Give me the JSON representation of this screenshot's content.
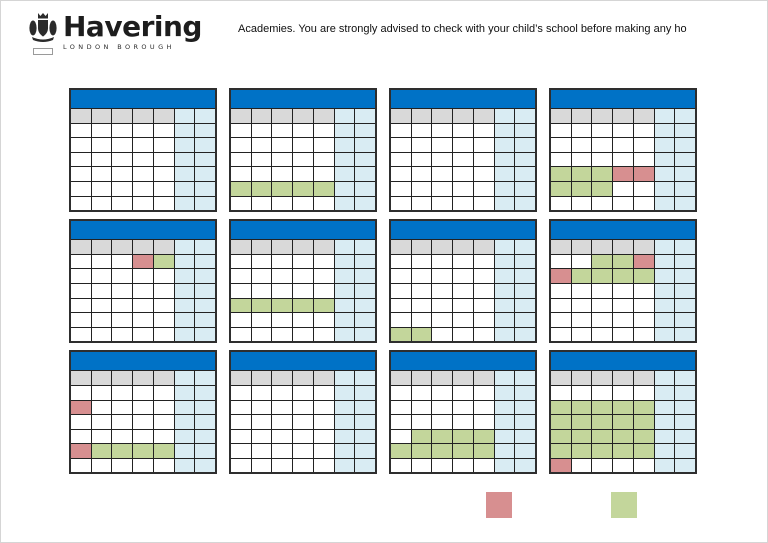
{
  "header": {
    "logo": {
      "name": "Havering",
      "subtitle": "LONDON BOROUGH",
      "crest_icon": "heraldic-crest"
    },
    "advisory_text": "Academies. You are strongly advised to check with your child’s school before making any ho"
  },
  "colors": {
    "title_bar_blue": "#0072C6",
    "day_header_gray": "#D9D9D9",
    "weekend_blue": "#D9ECF3",
    "holiday_green": "#C3D69B",
    "closure_red": "#D78F90",
    "grid_line": "#222222"
  },
  "calendar_grid": {
    "columns": 7,
    "weekday_columns": 5,
    "data_rows": 6,
    "months": [
      {
        "id": 1,
        "marks": []
      },
      {
        "id": 2,
        "marks": [
          [
            5,
            1,
            "g"
          ],
          [
            5,
            2,
            "g"
          ],
          [
            5,
            3,
            "g"
          ],
          [
            5,
            4,
            "g"
          ],
          [
            5,
            5,
            "g"
          ]
        ]
      },
      {
        "id": 3,
        "marks": []
      },
      {
        "id": 4,
        "marks": [
          [
            4,
            1,
            "g"
          ],
          [
            4,
            2,
            "g"
          ],
          [
            4,
            3,
            "g"
          ],
          [
            4,
            4,
            "r"
          ],
          [
            4,
            5,
            "r"
          ],
          [
            5,
            1,
            "g"
          ],
          [
            5,
            2,
            "g"
          ],
          [
            5,
            3,
            "g"
          ]
        ]
      },
      {
        "id": 5,
        "marks": [
          [
            1,
            4,
            "r"
          ],
          [
            1,
            5,
            "g"
          ]
        ]
      },
      {
        "id": 6,
        "marks": [
          [
            4,
            1,
            "g"
          ],
          [
            4,
            2,
            "g"
          ],
          [
            4,
            3,
            "g"
          ],
          [
            4,
            4,
            "g"
          ],
          [
            4,
            5,
            "g"
          ]
        ]
      },
      {
        "id": 7,
        "marks": [
          [
            6,
            1,
            "g"
          ],
          [
            6,
            2,
            "g"
          ]
        ]
      },
      {
        "id": 8,
        "marks": [
          [
            1,
            3,
            "g"
          ],
          [
            1,
            4,
            "g"
          ],
          [
            1,
            5,
            "r"
          ],
          [
            2,
            1,
            "r"
          ],
          [
            2,
            2,
            "g"
          ],
          [
            2,
            3,
            "g"
          ],
          [
            2,
            4,
            "g"
          ],
          [
            2,
            5,
            "g"
          ]
        ]
      },
      {
        "id": 9,
        "marks": [
          [
            2,
            1,
            "r"
          ],
          [
            5,
            1,
            "r"
          ],
          [
            5,
            2,
            "g"
          ],
          [
            5,
            3,
            "g"
          ],
          [
            5,
            4,
            "g"
          ],
          [
            5,
            5,
            "g"
          ]
        ]
      },
      {
        "id": 10,
        "marks": []
      },
      {
        "id": 11,
        "marks": [
          [
            4,
            2,
            "g"
          ],
          [
            4,
            3,
            "g"
          ],
          [
            4,
            4,
            "g"
          ],
          [
            4,
            5,
            "g"
          ],
          [
            5,
            1,
            "g"
          ],
          [
            5,
            2,
            "g"
          ],
          [
            5,
            3,
            "g"
          ],
          [
            5,
            4,
            "g"
          ],
          [
            5,
            5,
            "g"
          ]
        ]
      },
      {
        "id": 12,
        "marks": [
          [
            2,
            1,
            "g"
          ],
          [
            2,
            2,
            "g"
          ],
          [
            2,
            3,
            "g"
          ],
          [
            2,
            4,
            "g"
          ],
          [
            2,
            5,
            "g"
          ],
          [
            3,
            1,
            "g"
          ],
          [
            3,
            2,
            "g"
          ],
          [
            3,
            3,
            "g"
          ],
          [
            3,
            4,
            "g"
          ],
          [
            3,
            5,
            "g"
          ],
          [
            4,
            1,
            "g"
          ],
          [
            4,
            2,
            "g"
          ],
          [
            4,
            3,
            "g"
          ],
          [
            4,
            4,
            "g"
          ],
          [
            4,
            5,
            "g"
          ],
          [
            5,
            1,
            "g"
          ],
          [
            5,
            2,
            "g"
          ],
          [
            5,
            3,
            "g"
          ],
          [
            5,
            4,
            "g"
          ],
          [
            5,
            5,
            "g"
          ],
          [
            6,
            1,
            "r"
          ]
        ]
      }
    ]
  },
  "legend": {
    "items": [
      {
        "swatch": "closure_red"
      },
      {
        "swatch": "holiday_green"
      }
    ]
  }
}
